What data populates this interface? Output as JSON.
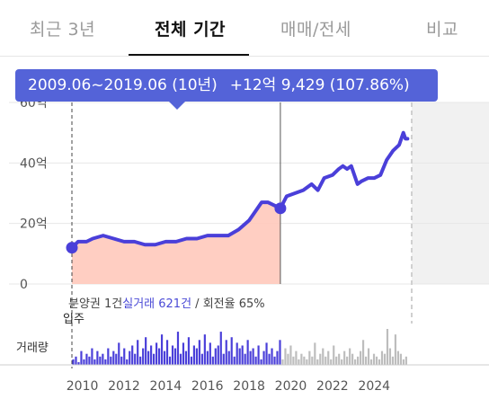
{
  "tabs": [
    {
      "label": "최근 3년",
      "active": false
    },
    {
      "label": "전체 기간",
      "active": true
    },
    {
      "label": "매매/전세",
      "active": false
    },
    {
      "label": "비교",
      "active": false
    }
  ],
  "tooltip": {
    "period": "2009.06~2019.06 (10년)",
    "change": "+12억 9,429 (107.86%)"
  },
  "info": {
    "prefix": "분양권 1건",
    "trades": "실거래 621건",
    "suffix": " / 회전율 65%"
  },
  "move_in_label": "입주",
  "volume_label": "거래량",
  "colors": {
    "accent": "#4a3fd9",
    "area_fill": "#ffc9bb",
    "tooltip_bg": "#5463d8",
    "volume_highlight": "#4a3fd9",
    "volume_muted": "#bdbdbd"
  },
  "chart_data": {
    "type": "line",
    "y_tick_labels": [
      "0",
      "20억",
      "40억",
      "60억"
    ],
    "ylim": [
      0,
      60
    ],
    "x_tick_labels": [
      "2010",
      "2012",
      "2014",
      "2016",
      "2018",
      "2020",
      "2022",
      "2024"
    ],
    "xlim": [
      2009.5,
      2025.8
    ],
    "selection": {
      "start": 2009.5,
      "end": 2019.5,
      "start_value": 12,
      "end_value": 25
    },
    "series": [
      {
        "x": [
          2009.5,
          2009.8,
          2010.2,
          2010.5,
          2011.0,
          2011.5,
          2012.0,
          2012.5,
          2013.0,
          2013.5,
          2014.0,
          2014.5,
          2015.0,
          2015.5,
          2016.0,
          2016.5,
          2017.0,
          2017.5,
          2018.0,
          2018.3,
          2018.6,
          2018.9,
          2019.2,
          2019.5,
          2019.8,
          2020.2,
          2020.6,
          2021.0,
          2021.3,
          2021.6,
          2022.0,
          2022.3,
          2022.5,
          2022.7,
          2022.9,
          2023.2,
          2023.4,
          2023.7,
          2024.0,
          2024.3,
          2024.6,
          2024.9,
          2025.2,
          2025.4,
          2025.5,
          2025.6
        ],
        "y": [
          12,
          14,
          14,
          15,
          16,
          15,
          14,
          14,
          13,
          13,
          14,
          14,
          15,
          15,
          16,
          16,
          16,
          18,
          21,
          24,
          27,
          27,
          26,
          25,
          29,
          30,
          31,
          33,
          31,
          35,
          36,
          38,
          39,
          38,
          39,
          33,
          34,
          35,
          35,
          36,
          41,
          44,
          46,
          50,
          48,
          48
        ]
      }
    ],
    "volume": {
      "x_start": 2009.5,
      "x_end": 2025.6,
      "highlight_until": 2019.5,
      "max": 13,
      "values": [
        2,
        3,
        1,
        5,
        2,
        4,
        3,
        6,
        2,
        5,
        3,
        4,
        2,
        6,
        3,
        5,
        4,
        8,
        3,
        6,
        2,
        5,
        7,
        4,
        9,
        3,
        6,
        10,
        5,
        7,
        4,
        8,
        6,
        11,
        5,
        9,
        3,
        7,
        6,
        12,
        4,
        8,
        5,
        10,
        3,
        7,
        6,
        9,
        4,
        11,
        5,
        8,
        3,
        6,
        7,
        12,
        4,
        9,
        5,
        10,
        3,
        8,
        6,
        7,
        4,
        9,
        5,
        6,
        3,
        7,
        2,
        5,
        8,
        4,
        6,
        3,
        5,
        9,
        2,
        6,
        4,
        7,
        3,
        5,
        2,
        4,
        3,
        2,
        5,
        3,
        8,
        2,
        4,
        6,
        3,
        5,
        2,
        7,
        3,
        4,
        2,
        5,
        3,
        6,
        4,
        2,
        3,
        5,
        9,
        3,
        6,
        2,
        4,
        3,
        2,
        5,
        4,
        13,
        6,
        3,
        11,
        5,
        4,
        2,
        3
      ]
    }
  }
}
